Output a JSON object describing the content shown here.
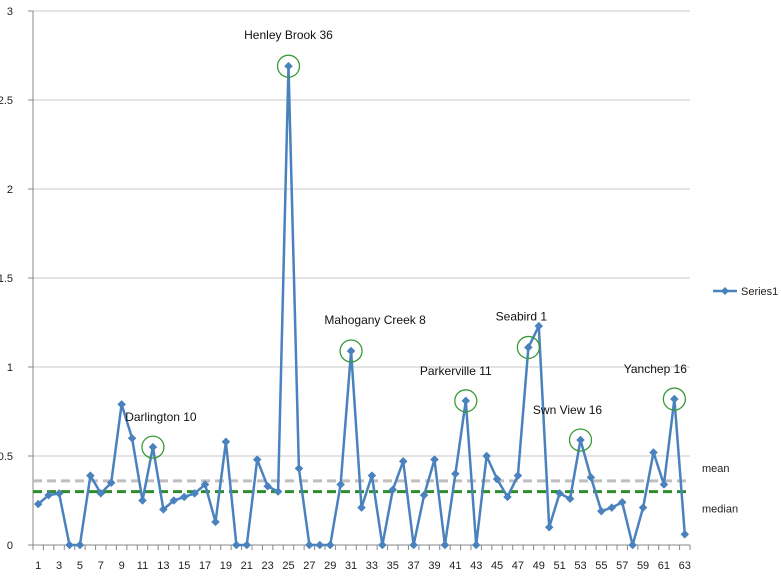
{
  "chart_data": {
    "type": "line",
    "title": "",
    "xlabel": "",
    "ylabel": "",
    "ylim": [
      0,
      3
    ],
    "yticks": [
      "0",
      "0.5",
      "1",
      "1.5",
      "2",
      "2.5",
      "3"
    ],
    "xticks": [
      "1",
      "3",
      "5",
      "7",
      "9",
      "11",
      "13",
      "15",
      "17",
      "19",
      "21",
      "23",
      "25",
      "27",
      "29",
      "31",
      "33",
      "35",
      "37",
      "39",
      "41",
      "43",
      "45",
      "47",
      "49",
      "51",
      "53",
      "55",
      "57",
      "59",
      "61",
      "63"
    ],
    "grid": true,
    "legend": "right",
    "series": [
      {
        "name": "Series1",
        "color": "#4a82be",
        "x": [
          1,
          2,
          3,
          4,
          5,
          6,
          7,
          8,
          9,
          10,
          11,
          12,
          13,
          14,
          15,
          16,
          17,
          18,
          19,
          20,
          21,
          22,
          23,
          24,
          25,
          26,
          27,
          28,
          29,
          30,
          31,
          32,
          33,
          34,
          35,
          36,
          37,
          38,
          39,
          40,
          41,
          42,
          43,
          44,
          45,
          46,
          47,
          48,
          49,
          50,
          51,
          52,
          53,
          54,
          55,
          56,
          57,
          58,
          59,
          60,
          61,
          62,
          63
        ],
        "values": [
          0.23,
          0.28,
          0.29,
          0.0,
          0.0,
          0.39,
          0.29,
          0.35,
          0.79,
          0.6,
          0.25,
          0.55,
          0.2,
          0.25,
          0.27,
          0.29,
          0.34,
          0.13,
          0.58,
          0.0,
          0.0,
          0.48,
          0.33,
          0.3,
          2.69,
          0.43,
          0.0,
          0.0,
          0.0,
          0.34,
          1.09,
          0.21,
          0.39,
          0.0,
          0.31,
          0.47,
          0.0,
          0.28,
          0.48,
          0.0,
          0.4,
          0.81,
          0.0,
          0.5,
          0.37,
          0.27,
          0.39,
          1.11,
          1.23,
          0.1,
          0.29,
          0.26,
          0.59,
          0.38,
          0.19,
          0.21,
          0.24,
          0.0,
          0.21,
          0.52,
          0.34,
          0.82,
          0.06
        ]
      }
    ],
    "reference_lines": [
      {
        "name": "mean",
        "value": 0.36,
        "color": "#c0bdbf",
        "style": "dashed"
      },
      {
        "name": "median",
        "value": 0.3,
        "color": "#2e8b2e",
        "style": "dashed"
      }
    ],
    "annotations": [
      {
        "label": "Henley Brook 36",
        "x": 25,
        "circled": true
      },
      {
        "label": "Mahogany Creek 8",
        "x": 31,
        "circled": true
      },
      {
        "label": "Seabird 1",
        "x": 48,
        "circled": true
      },
      {
        "label": "Parkerville 11",
        "x": 42,
        "circled": true
      },
      {
        "label": "Darlington 10",
        "x": 12,
        "circled": true
      },
      {
        "label": "Swn View 16",
        "x": 53,
        "circled": true
      },
      {
        "label": "Yanchep 16",
        "x": 62,
        "circled": true
      }
    ],
    "circle_color": "#3a9a3a"
  }
}
